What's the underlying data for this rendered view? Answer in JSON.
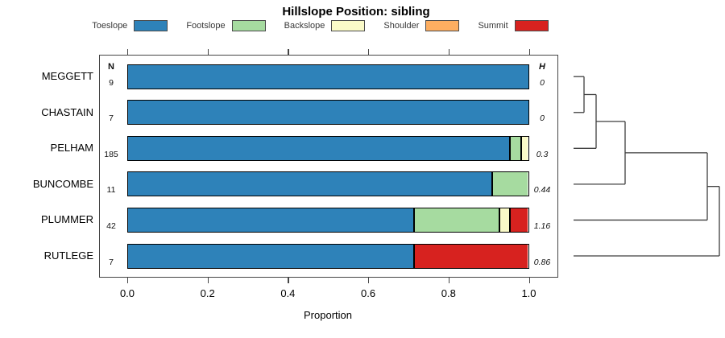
{
  "columns": {
    "n": "N",
    "h": "H"
  },
  "chart_data": {
    "type": "bar",
    "variant": "horizontal-stacked-proportion",
    "title": "Hillslope Position: sibling",
    "xlabel": "Proportion",
    "xlim": [
      0,
      1
    ],
    "x_ticks": [
      "0.0",
      "0.2",
      "0.4",
      "0.6",
      "0.8",
      "1.0"
    ],
    "grid": false,
    "legend_position": "top",
    "categories": [
      "MEGGETT",
      "CHASTAIN",
      "PELHAM",
      "BUNCOMBE",
      "PLUMMER",
      "RUTLEGE"
    ],
    "n_values": [
      "9",
      "7",
      "185",
      "11",
      "42",
      "7"
    ],
    "h_values": [
      "0",
      "0",
      "0.3",
      "0.44",
      "1.16",
      "0.86"
    ],
    "series": [
      {
        "name": "Toeslope",
        "color": "#2E82B9",
        "values": [
          1,
          1,
          0.953,
          0.909,
          0.713,
          0.712
        ]
      },
      {
        "name": "Footslope",
        "color": "#A6DBA0",
        "values": [
          0,
          0,
          0.027,
          0.091,
          0.214,
          0
        ]
      },
      {
        "name": "Backslope",
        "color": "#FAFAC8",
        "values": [
          0,
          0,
          0.02,
          0,
          0.025,
          0
        ]
      },
      {
        "name": "Shoulder",
        "color": "#FDAE61",
        "values": [
          0,
          0,
          0,
          0,
          0,
          0
        ]
      },
      {
        "name": "Summit",
        "color": "#D7221F",
        "values": [
          0,
          0,
          0,
          0,
          0.048,
          0.288
        ]
      }
    ],
    "dendrogram": {
      "leaf_x": 712,
      "merges": [
        {
          "a": "L0",
          "b": "L1",
          "x": 725
        },
        {
          "a": "M0",
          "b": "L2",
          "x": 740
        },
        {
          "a": "M1",
          "b": "L3",
          "x": 776
        },
        {
          "a": "M2",
          "b": "L4",
          "x": 878
        },
        {
          "a": "M3",
          "b": "L5",
          "x": 893
        }
      ]
    },
    "colors": {
      "bar_border": "#000000",
      "box_border": "#454545",
      "dendrogram_line": "#3f3f3f"
    }
  }
}
